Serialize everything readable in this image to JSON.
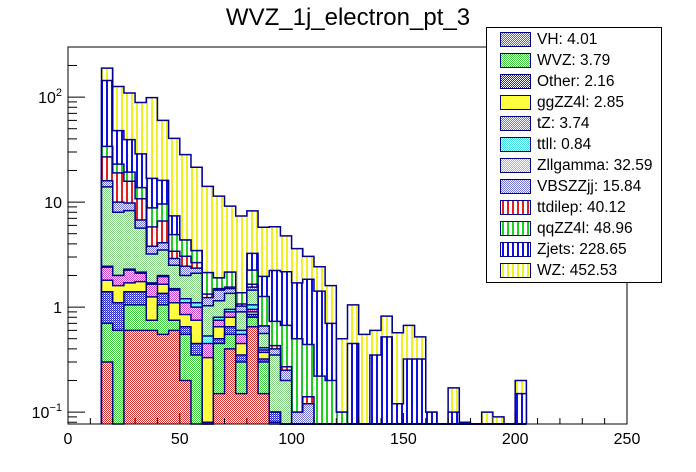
{
  "chart_data": {
    "type": "bar",
    "stacked": true,
    "title": "WVZ_1j_electron_pt_3",
    "xlabel": "",
    "ylabel": "",
    "xlim": [
      0,
      250
    ],
    "ylim": [
      0.077,
      300
    ],
    "yscale": "log",
    "x_ticks": [
      "0",
      "50",
      "100",
      "150",
      "200",
      "250"
    ],
    "x_tick_values": [
      0,
      50,
      100,
      150,
      200,
      250
    ],
    "y_ticks": [
      {
        "value": 0.1,
        "base": "10",
        "exp": "−1"
      },
      {
        "value": 1,
        "base": "1",
        "exp": ""
      },
      {
        "value": 10,
        "base": "10",
        "exp": ""
      },
      {
        "value": 100,
        "base": "10",
        "exp": "2"
      }
    ],
    "legend_position": "top-right",
    "bin_edges_start": 15,
    "bin_width": 5,
    "series": [
      {
        "name": "VH",
        "total": "4.01",
        "color": "#d43030",
        "pattern": "check",
        "values": [
          0.3,
          0,
          0.6,
          0.6,
          0.6,
          0.55,
          0.6,
          0.2,
          0,
          0,
          0.15,
          0.4,
          0.15,
          0.65,
          0.15,
          0,
          0,
          0,
          0,
          0,
          0,
          0,
          0,
          0,
          0,
          0,
          0,
          0,
          0,
          0,
          0,
          0,
          0,
          0,
          0,
          0,
          0,
          0
        ]
      },
      {
        "name": "WVZ",
        "total": "3.79",
        "color": "#40d040",
        "pattern": "check",
        "values": [
          0.4,
          0.6,
          0.45,
          0.45,
          0.15,
          0.5,
          0.15,
          0.35,
          0.35,
          0,
          0.3,
          0.15,
          0.15,
          0.15,
          0.15,
          0.08,
          0,
          0,
          0,
          0,
          0,
          0,
          0,
          0,
          0,
          0,
          0,
          0,
          0,
          0,
          0,
          0,
          0,
          0,
          0,
          0,
          0,
          0
        ]
      },
      {
        "name": "Other",
        "total": "2.16",
        "color": "#2020c0",
        "pattern": "dense-check",
        "values": [
          0.7,
          0.5,
          0.35,
          0.35,
          0,
          0.3,
          0,
          0.1,
          0.1,
          0.08,
          0.05,
          0.1,
          0.05,
          0.05,
          0.02,
          0.02,
          0,
          0,
          0.02,
          0,
          0,
          0,
          0,
          0,
          0,
          0,
          0,
          0,
          0,
          0,
          0,
          0,
          0,
          0,
          0,
          0,
          0,
          0
        ]
      },
      {
        "name": "ggZZ4l",
        "total": "2.85",
        "color": "#ffff40",
        "pattern": "solid",
        "values": [
          0.4,
          0.5,
          0.3,
          0.35,
          0.5,
          0.3,
          0.35,
          0.2,
          0.3,
          0.25,
          0.15,
          0.15,
          0.1,
          0.05,
          0.05,
          0,
          0,
          0,
          0,
          0,
          0,
          0,
          0,
          0,
          0,
          0,
          0,
          0,
          0,
          0,
          0,
          0,
          0,
          0,
          0,
          0,
          0,
          0
        ]
      },
      {
        "name": "tZ",
        "total": "3.74",
        "color": "#d040d0",
        "pattern": "check",
        "values": [
          0.6,
          0.4,
          0.55,
          0.35,
          0.4,
          0.3,
          0.35,
          0.25,
          0.25,
          0.12,
          0.1,
          0.1,
          0.1,
          0.05,
          0.02,
          0,
          0,
          0,
          0,
          0,
          0,
          0,
          0,
          0,
          0,
          0,
          0,
          0,
          0,
          0,
          0,
          0,
          0,
          0,
          0,
          0,
          0,
          0
        ]
      },
      {
        "name": "ttll",
        "total": "0.84",
        "color": "#40e0e0",
        "pattern": "check",
        "values": [
          0.05,
          0,
          0.05,
          0.05,
          0.05,
          0.05,
          0.05,
          0.1,
          0.1,
          0.08,
          0.05,
          0.05,
          0.05,
          0.1,
          0.02,
          0,
          0,
          0,
          0,
          0,
          0,
          0,
          0,
          0,
          0,
          0,
          0,
          0,
          0,
          0,
          0,
          0,
          0,
          0,
          0,
          0,
          0,
          0
        ]
      },
      {
        "name": "Zllgamma",
        "total": "32.59",
        "color": "#80d080",
        "pattern": "check",
        "values": [
          11.5,
          6,
          6,
          3.5,
          1.5,
          1.5,
          1,
          0.8,
          1,
          0.5,
          0.35,
          0.4,
          0.3,
          0.4,
          0.15,
          0.25,
          0.2,
          0.05,
          0.05,
          0,
          0,
          0,
          0,
          0,
          0,
          0,
          0,
          0,
          0,
          0,
          0,
          0,
          0,
          0,
          0,
          0,
          0,
          0
        ]
      },
      {
        "name": "VBSZZjj",
        "total": "15.84",
        "color": "#7070d0",
        "pattern": "check",
        "values": [
          2,
          2,
          1.5,
          1.1,
          0.6,
          0.6,
          0.4,
          0.45,
          0.25,
          0.2,
          0.3,
          0.15,
          0.12,
          0.1,
          0.1,
          0.05,
          0.05,
          0.05,
          0.05,
          0.02,
          0,
          0,
          0,
          0,
          0,
          0,
          0,
          0,
          0,
          0,
          0,
          0,
          0,
          0,
          0,
          0,
          0,
          0
        ]
      },
      {
        "name": "ttdilep",
        "total": "40.12",
        "color": "#e02020",
        "pattern": "vlines",
        "values": [
          11,
          9,
          6,
          4,
          2,
          2.5,
          0.5,
          0.6,
          0.3,
          0.1,
          0.05,
          0.05,
          0.05,
          0.1,
          0,
          0.03,
          0.02,
          0,
          0.02,
          0,
          0,
          0,
          0,
          0,
          0,
          0,
          0,
          0,
          0,
          0,
          0,
          0,
          0,
          0,
          0,
          0,
          0,
          0
        ]
      },
      {
        "name": "qqZZ4l",
        "total": "48.96",
        "color": "#20d020",
        "pattern": "vlines",
        "values": [
          7,
          4,
          3.5,
          3,
          3,
          3,
          1.5,
          1.3,
          0.8,
          0.8,
          0.4,
          0.6,
          0.3,
          0.6,
          0.6,
          0.3,
          0.4,
          0.4,
          0.3,
          0.2,
          0.2,
          0.1,
          0.05,
          0.05,
          0.05,
          0.02,
          0.02,
          0.02,
          0.02,
          0,
          0,
          0,
          0,
          0,
          0,
          0,
          0,
          0
        ]
      },
      {
        "name": "Zjets",
        "total": "228.65",
        "color": "#1010e0",
        "pattern": "vlines",
        "values": [
          110,
          25,
          20,
          15,
          8,
          6.5,
          2.5,
          0,
          0,
          0,
          0,
          0,
          0,
          1,
          0.7,
          1.5,
          1.5,
          1.2,
          1.4,
          1.2,
          0.5,
          0,
          0.4,
          0,
          0.3,
          0.5,
          0.1,
          0.3,
          0.3,
          0.1,
          0,
          0.1,
          0,
          0,
          0,
          0,
          0,
          0.15
        ]
      },
      {
        "name": "WZ",
        "total": "452.53",
        "color": "#f0f020",
        "pattern": "vlines",
        "values": [
          45,
          78,
          70,
          60,
          82,
          44,
          33,
          24,
          18,
          12,
          9.5,
          7,
          6,
          5,
          3.8,
          3.6,
          2.6,
          1.9,
          1.2,
          1,
          0.9,
          0.4,
          0.6,
          0.5,
          0.25,
          0.3,
          0.45,
          0.35,
          0.2,
          0,
          0.07,
          0.07,
          0.08,
          0.07,
          0.1,
          0.09,
          0,
          0.05
        ]
      }
    ]
  }
}
